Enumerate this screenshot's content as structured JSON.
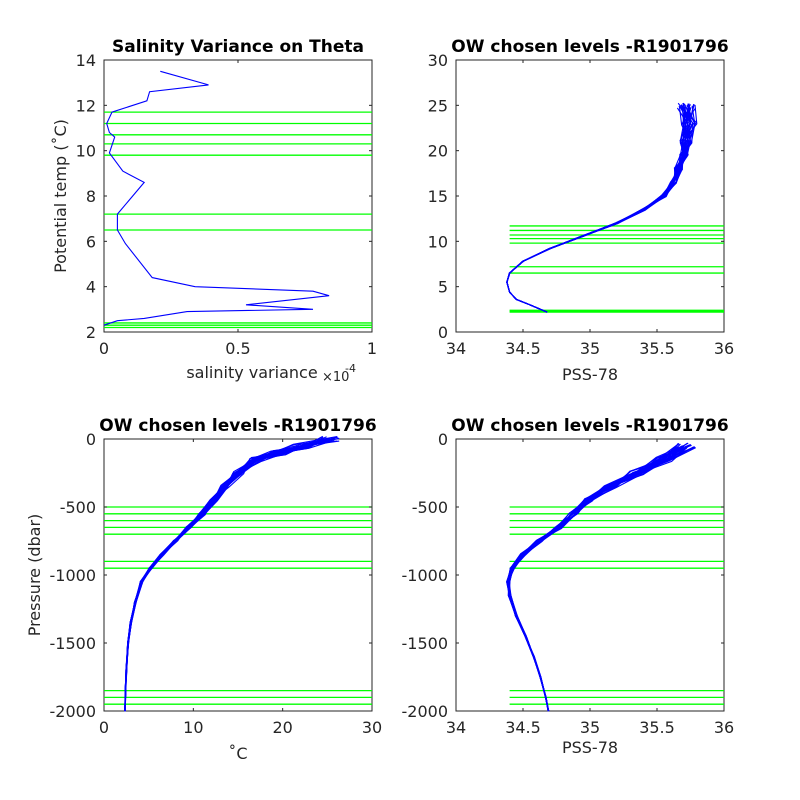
{
  "colors": {
    "profile": "#0000ff",
    "level": "#00ff00",
    "axis": "#262626"
  },
  "chart_data": [
    {
      "id": "salvar",
      "type": "line",
      "title": "Salinity Variance on Theta",
      "xlabel": "salinity variance",
      "x_exponent": "×10",
      "x_exponent_power": "-4",
      "ylabel": "Potential temp (˚C)",
      "xlim": [
        0,
        1
      ],
      "ylim": [
        2,
        14
      ],
      "xticks": [
        "0",
        "0.5",
        "1"
      ],
      "yticks": [
        "2",
        "4",
        "6",
        "8",
        "10",
        "12",
        "14"
      ],
      "grid": false,
      "series": [
        {
          "x": [
            0.21,
            0.39,
            0.17,
            0.16,
            0.03,
            0.01,
            0.02,
            0.04,
            0.02,
            0.07,
            0.15,
            0.05,
            0.05,
            0.08,
            0.18,
            0.34,
            0.78,
            0.84,
            0.53,
            0.78,
            0.31,
            0.15,
            0.05,
            0.0
          ],
          "y": [
            13.5,
            12.9,
            12.6,
            12.2,
            11.7,
            11.2,
            10.8,
            10.6,
            9.9,
            9.1,
            8.6,
            7.2,
            6.5,
            5.9,
            4.4,
            4.0,
            3.8,
            3.6,
            3.2,
            3.0,
            2.9,
            2.6,
            2.5,
            2.3
          ]
        }
      ],
      "levels": [
        11.7,
        11.2,
        10.7,
        10.3,
        9.8,
        7.2,
        6.5,
        2.4,
        2.3,
        2.2
      ]
    },
    {
      "id": "ts",
      "type": "line",
      "title": "OW chosen levels -R1901796",
      "xlabel": "PSS-78",
      "ylabel": "",
      "xlim": [
        34,
        36
      ],
      "ylim": [
        0,
        30
      ],
      "xticks": [
        "34",
        "34.5",
        "35",
        "35.5",
        "36"
      ],
      "yticks": [
        "0",
        "5",
        "10",
        "15",
        "20",
        "25",
        "30"
      ],
      "grid": false,
      "series": [
        {
          "x": [
            34.68,
            34.55,
            34.45,
            34.4,
            34.38,
            34.4,
            34.5,
            34.7,
            34.95,
            35.2,
            35.4,
            35.55,
            35.62,
            35.66,
            35.7,
            35.72,
            35.74,
            35.72
          ],
          "y": [
            2.2,
            3.0,
            3.6,
            4.4,
            5.5,
            6.5,
            7.8,
            9.2,
            10.6,
            12.0,
            13.5,
            15.0,
            16.5,
            18.0,
            19.5,
            21.0,
            23.0,
            25.0
          ]
        }
      ],
      "levels": [
        11.7,
        11.2,
        10.7,
        10.3,
        9.8,
        7.2,
        6.5,
        2.4,
        2.3,
        2.2
      ],
      "level_x_range": [
        34.4,
        36
      ]
    },
    {
      "id": "tp",
      "type": "line",
      "title": "OW chosen levels -R1901796",
      "xlabel": "˚C",
      "ylabel": "Pressure (dbar)",
      "xlim": [
        0,
        30
      ],
      "ylim": [
        -2000,
        0
      ],
      "xticks": [
        "0",
        "10",
        "20",
        "30"
      ],
      "yticks": [
        "-2000",
        "-1500",
        "-1000",
        "-500",
        "0"
      ],
      "grid": false,
      "series": [
        {
          "x": [
            25.5,
            22.0,
            19.5,
            17.0,
            15.0,
            13.5,
            12.3,
            11.0,
            9.5,
            8.0,
            6.5,
            5.2,
            4.2,
            3.5,
            3.0,
            2.7,
            2.5,
            2.4,
            2.35
          ],
          "y": [
            0,
            -50,
            -100,
            -150,
            -250,
            -350,
            -450,
            -550,
            -650,
            -750,
            -850,
            -950,
            -1050,
            -1200,
            -1350,
            -1500,
            -1700,
            -1850,
            -2000
          ]
        }
      ],
      "levels": [
        -500,
        -550,
        -600,
        -650,
        -700,
        -900,
        -950,
        -1850,
        -1900,
        -1950
      ],
      "level_x_range": [
        0,
        30
      ]
    },
    {
      "id": "sp",
      "type": "line",
      "title": "OW chosen levels -R1901796",
      "xlabel": "PSS-78",
      "ylabel": "",
      "xlim": [
        34,
        36
      ],
      "ylim": [
        -2000,
        0
      ],
      "xticks": [
        "34",
        "34.5",
        "35",
        "35.5",
        "36"
      ],
      "yticks": [
        "-2000",
        "-1500",
        "-1000",
        "-500",
        "0"
      ],
      "grid": false,
      "series": [
        {
          "x": [
            35.72,
            35.55,
            35.35,
            35.15,
            35.0,
            34.88,
            34.76,
            34.62,
            34.5,
            34.42,
            34.39,
            34.4,
            34.45,
            34.52,
            34.58,
            34.63,
            34.67,
            34.69
          ],
          "y": [
            -50,
            -150,
            -250,
            -350,
            -450,
            -550,
            -650,
            -750,
            -850,
            -950,
            -1050,
            -1150,
            -1300,
            -1450,
            -1600,
            -1750,
            -1900,
            -2000
          ]
        }
      ],
      "levels": [
        -500,
        -550,
        -600,
        -650,
        -700,
        -900,
        -950,
        -1850,
        -1900,
        -1950
      ],
      "level_x_range": [
        34.4,
        36
      ]
    }
  ]
}
